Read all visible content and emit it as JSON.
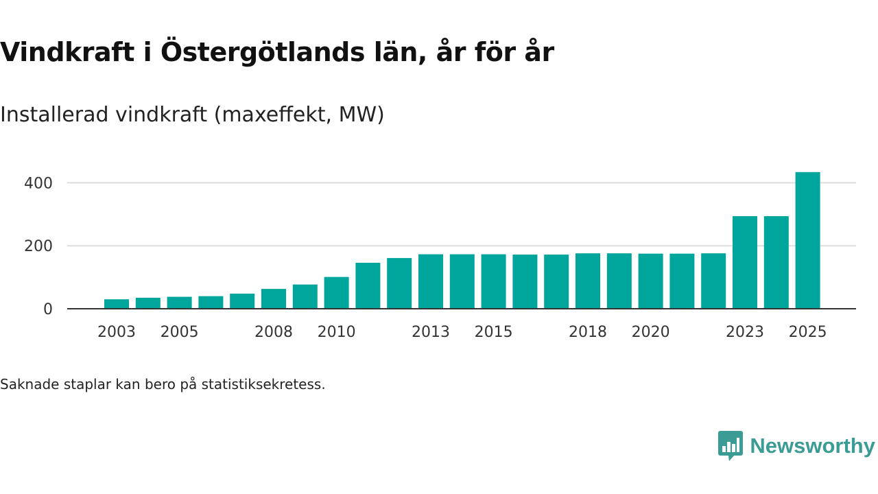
{
  "header": {
    "title": "Vindkraft i Östergötlands län, år för år",
    "subtitle": "Installerad vindkraft (maxeffekt, MW)"
  },
  "footnote": "Saknade staplar kan bero på statistiksekretess.",
  "brand": {
    "name": "Newsworthy",
    "icon": "newsworthy-logo-icon",
    "color": "#3a9c94"
  },
  "colors": {
    "bar": "#00a59b",
    "grid": "#dddddd",
    "axis": "#333333",
    "tick_text": "#333333"
  },
  "chart_data": {
    "type": "bar",
    "title": "Vindkraft i Östergötlands län, år för år",
    "subtitle": "Installerad vindkraft (maxeffekt, MW)",
    "xlabel": "",
    "ylabel": "",
    "categories": [
      "2003",
      "2004",
      "2005",
      "2006",
      "2007",
      "2008",
      "2009",
      "2010",
      "2011",
      "2012",
      "2013",
      "2014",
      "2015",
      "2016",
      "2017",
      "2018",
      "2019",
      "2020",
      "2021",
      "2022",
      "2023",
      "2024",
      "2025"
    ],
    "values": [
      30,
      35,
      38,
      40,
      48,
      63,
      77,
      101,
      146,
      161,
      173,
      173,
      173,
      172,
      172,
      176,
      176,
      175,
      175,
      176,
      294,
      294,
      434
    ],
    "x_tick_labels": [
      "2003",
      "2005",
      "2008",
      "2010",
      "2013",
      "2015",
      "2018",
      "2020",
      "2023",
      "2025"
    ],
    "y_ticks": [
      0,
      200,
      400
    ],
    "y_tick_labels": [
      "0",
      "200",
      "400"
    ],
    "ylim": [
      0,
      440
    ],
    "grid": true,
    "legend": "none"
  }
}
